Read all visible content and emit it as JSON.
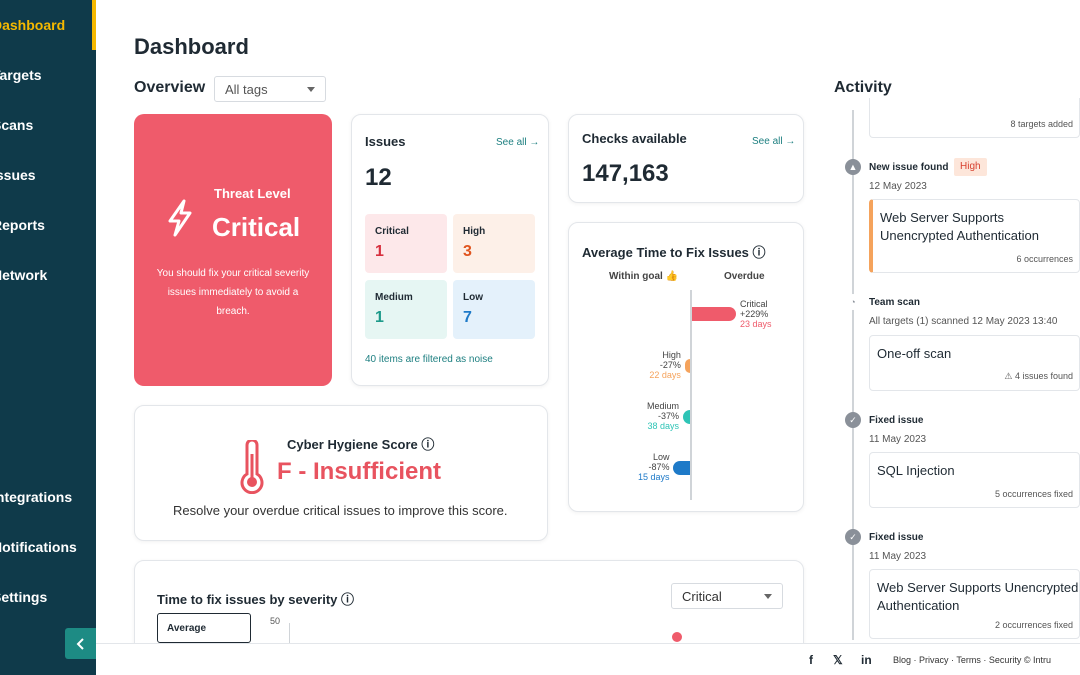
{
  "sidebar": {
    "items": [
      {
        "label": "Dashboard"
      },
      {
        "label": "Targets"
      },
      {
        "label": "Scans"
      },
      {
        "label": "Issues"
      },
      {
        "label": "Reports"
      },
      {
        "label": "Network"
      },
      {
        "label": "Integrations"
      },
      {
        "label": "Notifications"
      },
      {
        "label": "Settings"
      }
    ],
    "collapse_icon": "chevron-left-icon"
  },
  "page": {
    "title": "Dashboard"
  },
  "overview": {
    "title": "Overview",
    "tag_filter": "All tags"
  },
  "threat": {
    "label": "Threat Level",
    "value": "Critical",
    "description": "You should fix your critical severity issues immediately to avoid a breach.",
    "color": "#ef5b6b"
  },
  "issues": {
    "title": "Issues",
    "see_all": "See all →",
    "total": "12",
    "severities": [
      {
        "label": "Critical",
        "count": "1",
        "color": "#d7303f",
        "bg": "#fde8ea"
      },
      {
        "label": "High",
        "count": "3",
        "color": "#e0541e",
        "bg": "#fdf0e8"
      },
      {
        "label": "Medium",
        "count": "1",
        "color": "#1d9a8a",
        "bg": "#e6f6f3"
      },
      {
        "label": "Low",
        "count": "7",
        "color": "#1e7ac8",
        "bg": "#e4f1fb"
      }
    ],
    "noise": "40 items are filtered as noise"
  },
  "checks": {
    "title": "Checks available",
    "see_all": "See all →",
    "total": "147,163"
  },
  "fix_time": {
    "title": "Average Time to Fix Issues ⓘ",
    "within_goal": "Within goal 👍",
    "overdue": "Overdue",
    "rows": [
      {
        "name": "Critical",
        "pct": "+229%",
        "days": "23 days",
        "pct_value": 229,
        "color": "#ef5b6b"
      },
      {
        "name": "High",
        "pct": "-27%",
        "days": "22 days",
        "pct_value": -27,
        "color": "#f5a35c"
      },
      {
        "name": "Medium",
        "pct": "-37%",
        "days": "38 days",
        "pct_value": -37,
        "color": "#2ec4b6"
      },
      {
        "name": "Low",
        "pct": "-87%",
        "days": "15 days",
        "pct_value": -87,
        "color": "#1e7ac8"
      }
    ]
  },
  "hygiene": {
    "title": "Cyber Hygiene Score ⓘ",
    "value": "F - Insufficient",
    "description": "Resolve your overdue critical issues to improve this score."
  },
  "time_by_severity": {
    "title": "Time to fix issues by severity ⓘ",
    "selected": "Critical",
    "avg_label": "Average",
    "tick": "50"
  },
  "activity": {
    "title": "Activity",
    "items": [
      {
        "meta": "8 targets added"
      },
      {
        "event": "New issue found",
        "badge": "High",
        "date": "12 May 2023",
        "title": "Web Server Supports Unencrypted Authentication",
        "meta": "6 occurrences"
      },
      {
        "event": "Team scan",
        "date": "All targets (1) scanned 12 May 2023 13:40",
        "title": "One-off scan",
        "meta": "⚠ 4 issues found"
      },
      {
        "event": "Fixed issue",
        "date": "11 May 2023",
        "title": "SQL Injection",
        "meta": "5 occurrences fixed"
      },
      {
        "event": "Fixed issue",
        "date": "11 May 2023",
        "title": "Web Server Supports Unencrypted Authentication",
        "meta": "2 occurrences fixed"
      }
    ]
  },
  "footer": {
    "social": [
      "f",
      "𝕏",
      "in"
    ],
    "links": "Blog · Privacy · Terms · Security   © Intru"
  }
}
